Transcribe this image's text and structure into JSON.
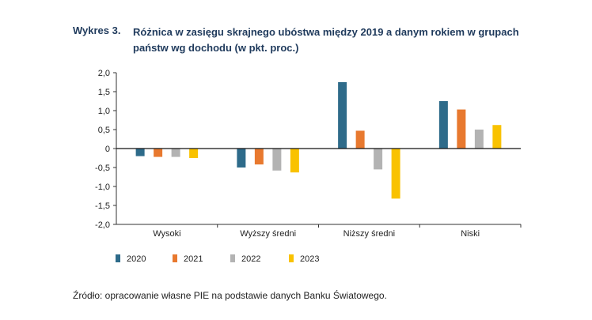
{
  "title": {
    "label": "Wykres 3.",
    "text": "Różnica w zasięgu skrajnego ubóstwa między 2019 a danym rokiem w grupach państw wg dochodu (w pkt. proc.)"
  },
  "source": "Źródło: opracowanie własne PIE na podstawie danych Banku Światowego.",
  "colors": {
    "2020": "#2e6b8a",
    "2021": "#e8792f",
    "2022": "#b3b3b3",
    "2023": "#f9c200"
  },
  "chart_data": {
    "type": "bar",
    "categories": [
      "Wysoki",
      "Wyższy średni",
      "Niższy średni",
      "Niski"
    ],
    "series": [
      {
        "name": "2020",
        "values": [
          -0.2,
          -0.5,
          1.75,
          1.25
        ]
      },
      {
        "name": "2021",
        "values": [
          -0.22,
          -0.42,
          0.47,
          1.03
        ]
      },
      {
        "name": "2022",
        "values": [
          -0.22,
          -0.58,
          -0.55,
          0.5
        ]
      },
      {
        "name": "2023",
        "values": [
          -0.25,
          -0.63,
          -1.32,
          0.62
        ]
      }
    ],
    "ylim": [
      -2.0,
      2.0
    ],
    "yticks": [
      "2,0",
      "1,5",
      "1,0",
      "0,5",
      "0",
      "-0,5",
      "-1,0",
      "-1,5",
      "-2,0"
    ],
    "ytick_values": [
      2.0,
      1.5,
      1.0,
      0.5,
      0,
      -0.5,
      -1.0,
      -1.5,
      -2.0
    ],
    "legend_position": "bottom-left",
    "grid": false
  }
}
